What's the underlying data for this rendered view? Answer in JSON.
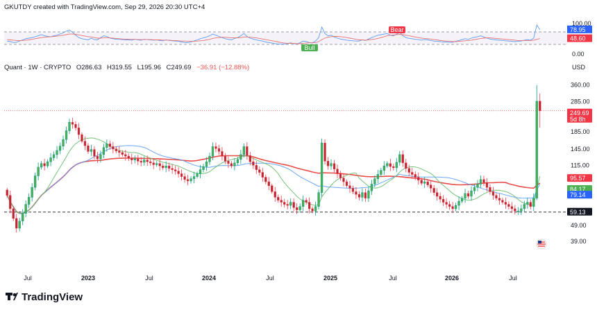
{
  "header": {
    "attribution": "GKUTDY created with TradingView.com, Sep 29, 2026 20:30 UTC+4"
  },
  "legend": {
    "symbol": "Quant · 1W · CRYPTO",
    "open": "O286.63",
    "high": "H319.55",
    "low": "L195.96",
    "close": "C249.69",
    "change": "−36.91 (−12.88%)",
    "change_color": "#ef5350"
  },
  "brand": {
    "name": "TradingView",
    "color": "#131722"
  },
  "currency_label": "USD",
  "colors": {
    "up": "#089981",
    "up_fill": "#4caf50",
    "down": "#f23645",
    "down_fill": "#b22833",
    "ma_long": "#e53935",
    "ma_mid": "#5b9cf6",
    "ma_short": "#66bb6a",
    "rsi_line": "#5b9cf6",
    "rsi_ma": "#e57373",
    "support": "#131722"
  },
  "chart_data": [
    {
      "type": "candlestick",
      "title": "Quant · 1W · CRYPTO",
      "yscale": "log",
      "ylabel": "USD",
      "ylim": [
        32,
        400
      ],
      "y_ticks": [
        360,
        285,
        185,
        145,
        115,
        49,
        39
      ],
      "x_ticks": [
        "Jul",
        "2023",
        "Jul",
        "2024",
        "Jul",
        "2025",
        "Jul",
        "2026",
        "Jul"
      ],
      "series_close": [
        75,
        62,
        54,
        47,
        52,
        58,
        66,
        73,
        84,
        99,
        112,
        118,
        114,
        121,
        128,
        134,
        142,
        151,
        166,
        188,
        212,
        206,
        196,
        178,
        162,
        152,
        140,
        144,
        131,
        126,
        134,
        148,
        156,
        150,
        145,
        141,
        138,
        134,
        131,
        127,
        124,
        126,
        122,
        120,
        124,
        121,
        119,
        116,
        118,
        114,
        111,
        114,
        110,
        108,
        106,
        102,
        98,
        94,
        92,
        95,
        98,
        102,
        108,
        113,
        121,
        131,
        150,
        146,
        140,
        131,
        122,
        118,
        114,
        119,
        125,
        134,
        150,
        132,
        121,
        115,
        108,
        104,
        97,
        91,
        86,
        79,
        73,
        70,
        68,
        66,
        65,
        68,
        63,
        61,
        64,
        70,
        68,
        62,
        60,
        64,
        78,
        158,
        122,
        114,
        118,
        109,
        102,
        96,
        91,
        86,
        83,
        79,
        76,
        73,
        78,
        72,
        80,
        88,
        95,
        101,
        107,
        114,
        118,
        113,
        111,
        120,
        134,
        119,
        110,
        104,
        101,
        97,
        93,
        89,
        91,
        87,
        83,
        78,
        74,
        71,
        68,
        66,
        64,
        62,
        65,
        69,
        72,
        77,
        74,
        80,
        84,
        88,
        94,
        90,
        84,
        79,
        75,
        72,
        70,
        68,
        66,
        64,
        62,
        60,
        60,
        62,
        66,
        68,
        64,
        72,
        286,
        250
      ],
      "last_candle": {
        "open": 286.63,
        "high": 319.55,
        "low": 195.96,
        "close": 249.69
      },
      "moving_averages": [
        {
          "color": "#e53935",
          "last": 95.57
        },
        {
          "color": "#66bb6a",
          "last": 84.17
        },
        {
          "color": "#5b9cf6",
          "last": 79.14
        }
      ],
      "price_tags": [
        {
          "value": "249.69",
          "sub": "5d 8h",
          "bg": "#f23645",
          "fg": "#ffffff"
        },
        {
          "value": "95.57",
          "bg": "#f23645",
          "fg": "#ffffff"
        },
        {
          "value": "84.17",
          "bg": "#4caf50",
          "fg": "#ffffff"
        },
        {
          "value": "79.14",
          "bg": "#2962ff",
          "fg": "#ffffff"
        },
        {
          "value": "59.13",
          "bg": "#131722",
          "fg": "#ffffff"
        }
      ],
      "support_level": 59.13,
      "grid": false
    },
    {
      "type": "line",
      "title": "",
      "ylim": [
        0,
        100
      ],
      "y_ticks": [
        "100.00",
        "0.00"
      ],
      "bands": [
        30,
        70
      ],
      "rsi_last": "78.95",
      "rsi_ma_last": "48.60",
      "rsi_tag_bg": "#2962ff",
      "rsi_ma_tag_bg": "#f23645",
      "signals": [
        {
          "label": "Bear",
          "bg": "#f23645"
        },
        {
          "label": "Bull",
          "bg": "#4caf50"
        }
      ],
      "series": [
        {
          "values": [
            40,
            38,
            35,
            36,
            40,
            44,
            48,
            50,
            52,
            55,
            58,
            62,
            58,
            56,
            55,
            58,
            60,
            64,
            68,
            74,
            78,
            70,
            60,
            52,
            48,
            46,
            44,
            50,
            45,
            44,
            52,
            58,
            56,
            50,
            48,
            46,
            46,
            45,
            44,
            44,
            43,
            46,
            44,
            43,
            46,
            45,
            44,
            43,
            44,
            42,
            41,
            44,
            42,
            41,
            40,
            39,
            37,
            35,
            34,
            37,
            40,
            44,
            48,
            51,
            54,
            58,
            64,
            60,
            56,
            52,
            48,
            46,
            44,
            49,
            52,
            58,
            66,
            56,
            50,
            47,
            44,
            42,
            40,
            37,
            35,
            33,
            31,
            30,
            30,
            30,
            31,
            34,
            31,
            30,
            34,
            40,
            38,
            35,
            34,
            40,
            52,
            88,
            66,
            58,
            60,
            54,
            50,
            47,
            45,
            43,
            42,
            41,
            40,
            40,
            44,
            42,
            47,
            52,
            56,
            60,
            62,
            64,
            66,
            60,
            58,
            64,
            70,
            58,
            52,
            49,
            48,
            46,
            45,
            43,
            45,
            44,
            42,
            40,
            39,
            38,
            37,
            37,
            36,
            36,
            39,
            42,
            45,
            48,
            46,
            50,
            53,
            55,
            58,
            54,
            50,
            47,
            45,
            44,
            43,
            42,
            41,
            40,
            39,
            38,
            39,
            40,
            43,
            45,
            43,
            50,
            95,
            78.95
          ]
        },
        {
          "values": [
            45,
            44,
            43,
            42,
            42,
            42,
            43,
            44,
            46,
            48,
            50,
            52,
            53,
            54,
            55,
            56,
            57,
            58,
            60,
            62,
            64,
            64,
            63,
            61,
            59,
            57,
            55,
            54,
            52,
            50,
            50,
            51,
            51,
            51,
            50,
            49,
            48,
            47,
            47,
            46,
            46,
            46,
            45,
            45,
            45,
            45,
            45,
            44,
            44,
            44,
            43,
            43,
            43,
            42,
            42,
            41,
            40,
            40,
            39,
            39,
            39,
            40,
            41,
            42,
            44,
            46,
            49,
            51,
            52,
            53,
            53,
            52,
            51,
            51,
            51,
            52,
            54,
            54,
            53,
            52,
            51,
            49,
            47,
            45,
            43,
            41,
            39,
            37,
            35,
            33,
            32,
            32,
            32,
            31,
            31,
            32,
            33,
            34,
            34,
            35,
            38,
            45,
            50,
            53,
            55,
            56,
            56,
            55,
            54,
            52,
            50,
            48,
            46,
            44,
            44,
            43,
            44,
            45,
            47,
            49,
            52,
            55,
            58,
            60,
            61,
            62,
            63,
            62,
            60,
            58,
            56,
            54,
            52,
            50,
            49,
            48,
            47,
            45,
            44,
            42,
            41,
            40,
            39,
            38,
            38,
            39,
            40,
            41,
            42,
            43,
            45,
            47,
            49,
            50,
            51,
            51,
            50,
            49,
            48,
            47,
            46,
            45,
            44,
            43,
            42,
            42,
            42,
            42,
            42,
            43,
            46,
            48.6
          ]
        }
      ]
    }
  ]
}
